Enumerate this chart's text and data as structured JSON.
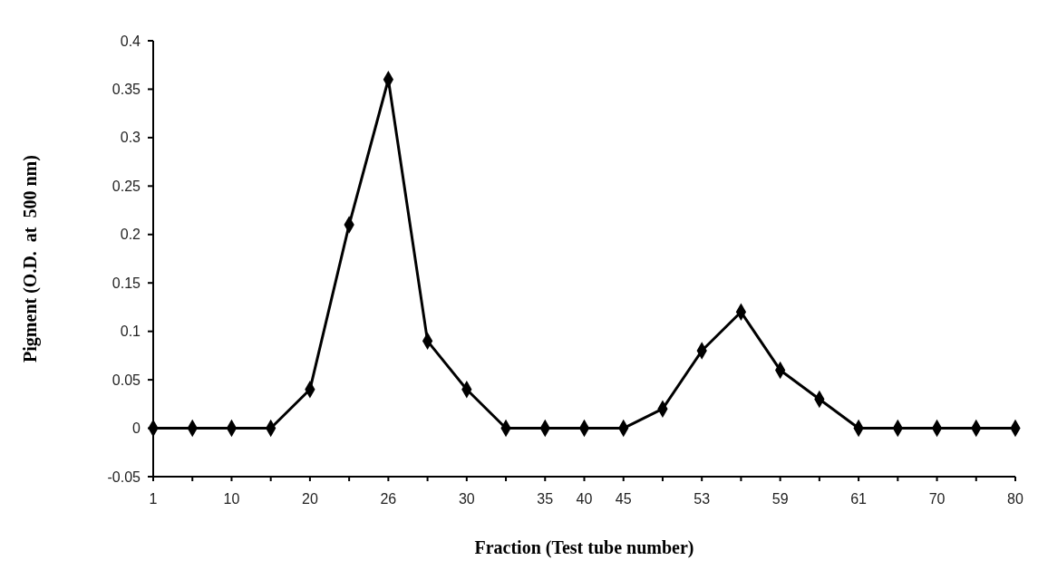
{
  "chart_data": {
    "type": "line",
    "xlabel": "Fraction (Test tube number)",
    "ylabel": "Pigment (O.D.  at  500 nm)",
    "categories": [
      "1",
      null,
      "10",
      null,
      "20",
      null,
      "26",
      null,
      "30",
      null,
      "35",
      "40",
      "45",
      null,
      "53",
      null,
      "59",
      null,
      "61",
      null,
      "70",
      null,
      "80"
    ],
    "series": [
      {
        "color": "#000000",
        "values": [
          0,
          0,
          0,
          0,
          0.04,
          0.21,
          0.36,
          0.09,
          0.04,
          0,
          0,
          0,
          0,
          0.02,
          0.08,
          0.12,
          0.06,
          0.03,
          0,
          0,
          0,
          0,
          0
        ]
      }
    ],
    "ylim": [
      -0.05,
      0.4
    ],
    "yticks": [
      -0.05,
      0,
      0.05,
      0.1,
      0.15,
      0.2,
      0.25,
      0.3,
      0.35,
      0.4
    ],
    "marker": "diamond",
    "line_style": "solid",
    "grid": false
  }
}
